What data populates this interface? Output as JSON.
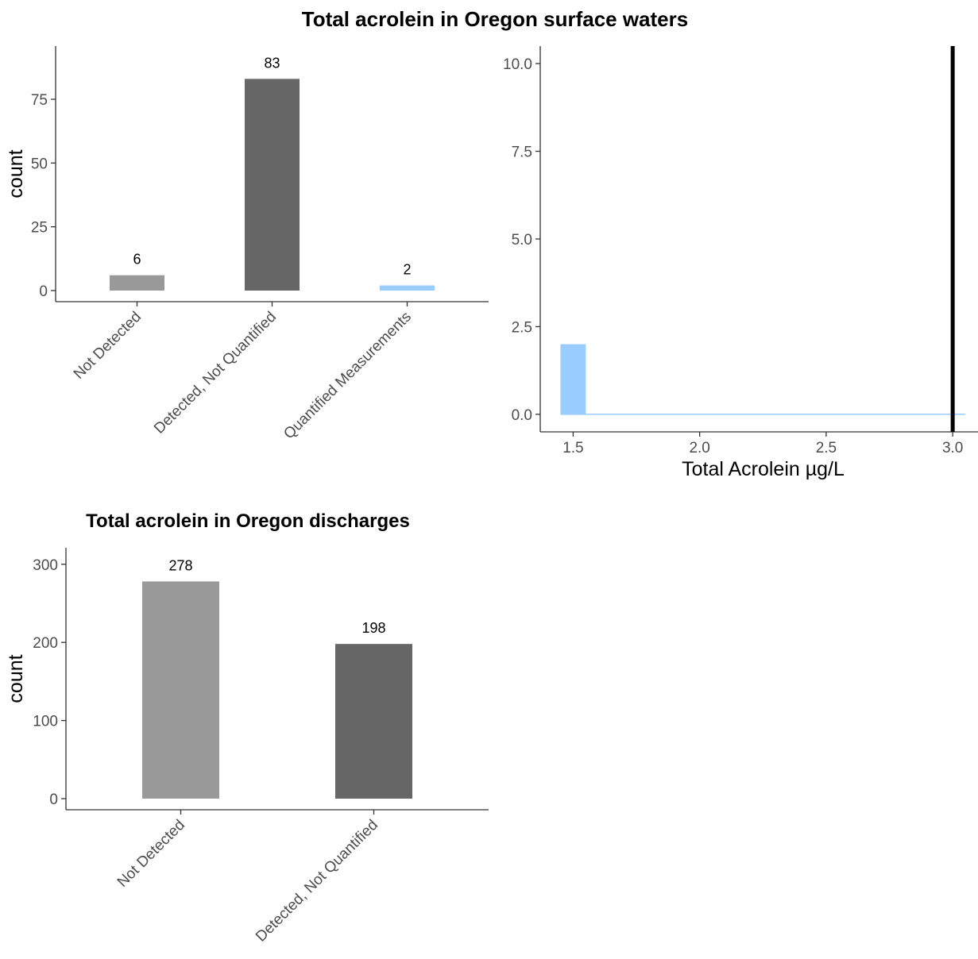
{
  "figure_title": "Total acrolein in Oregon surface waters",
  "chart_data": [
    {
      "id": "surface-bar",
      "type": "bar",
      "title": "",
      "xlabel": "",
      "ylabel": "count",
      "categories": [
        "Not Detected",
        "Detected, Not Quantified",
        "Quantified Measurements"
      ],
      "values": [
        6,
        83,
        2
      ],
      "data_labels": [
        "6",
        "83",
        "2"
      ],
      "colors": [
        "#999999",
        "#666666",
        "#99ccff"
      ],
      "ylim": [
        0,
        94
      ],
      "yticks": [
        0,
        25,
        50,
        75
      ],
      "ytick_labels": [
        "0",
        "25",
        "50",
        "75"
      ],
      "grid": false
    },
    {
      "id": "surface-hist",
      "type": "bar",
      "subtype": "histogram",
      "title": "",
      "xlabel": "Total Acrolein µg/L",
      "ylabel": "",
      "bins": [
        {
          "x0": 1.45,
          "x1": 1.55,
          "count": 2
        }
      ],
      "bar_color": "#99ccff",
      "baseline": {
        "from": 1.45,
        "to": 3.05,
        "color": "#99ccff"
      },
      "vline": {
        "x": 3.0,
        "color": "#000000"
      },
      "xlim": [
        1.37,
        3.1
      ],
      "ylim": [
        -0.5,
        10.5
      ],
      "xticks": [
        1.5,
        2.0,
        2.5,
        3.0
      ],
      "xtick_labels": [
        "1.5",
        "2.0",
        "2.5",
        "3.0"
      ],
      "yticks": [
        0,
        2.5,
        5.0,
        7.5,
        10.0
      ],
      "ytick_labels": [
        "0.0",
        "2.5",
        "5.0",
        "7.5",
        "10.0"
      ],
      "grid": false
    },
    {
      "id": "discharge-bar",
      "type": "bar",
      "title": "Total acrolein in Oregon discharges",
      "xlabel": "",
      "ylabel": "count",
      "categories": [
        "Not Detected",
        "Detected, Not Quantified"
      ],
      "values": [
        278,
        198
      ],
      "data_labels": [
        "278",
        "198"
      ],
      "colors": [
        "#999999",
        "#666666"
      ],
      "ylim": [
        0,
        315
      ],
      "yticks": [
        0,
        100,
        200,
        300
      ],
      "ytick_labels": [
        "0",
        "100",
        "200",
        "300"
      ],
      "grid": false
    }
  ]
}
